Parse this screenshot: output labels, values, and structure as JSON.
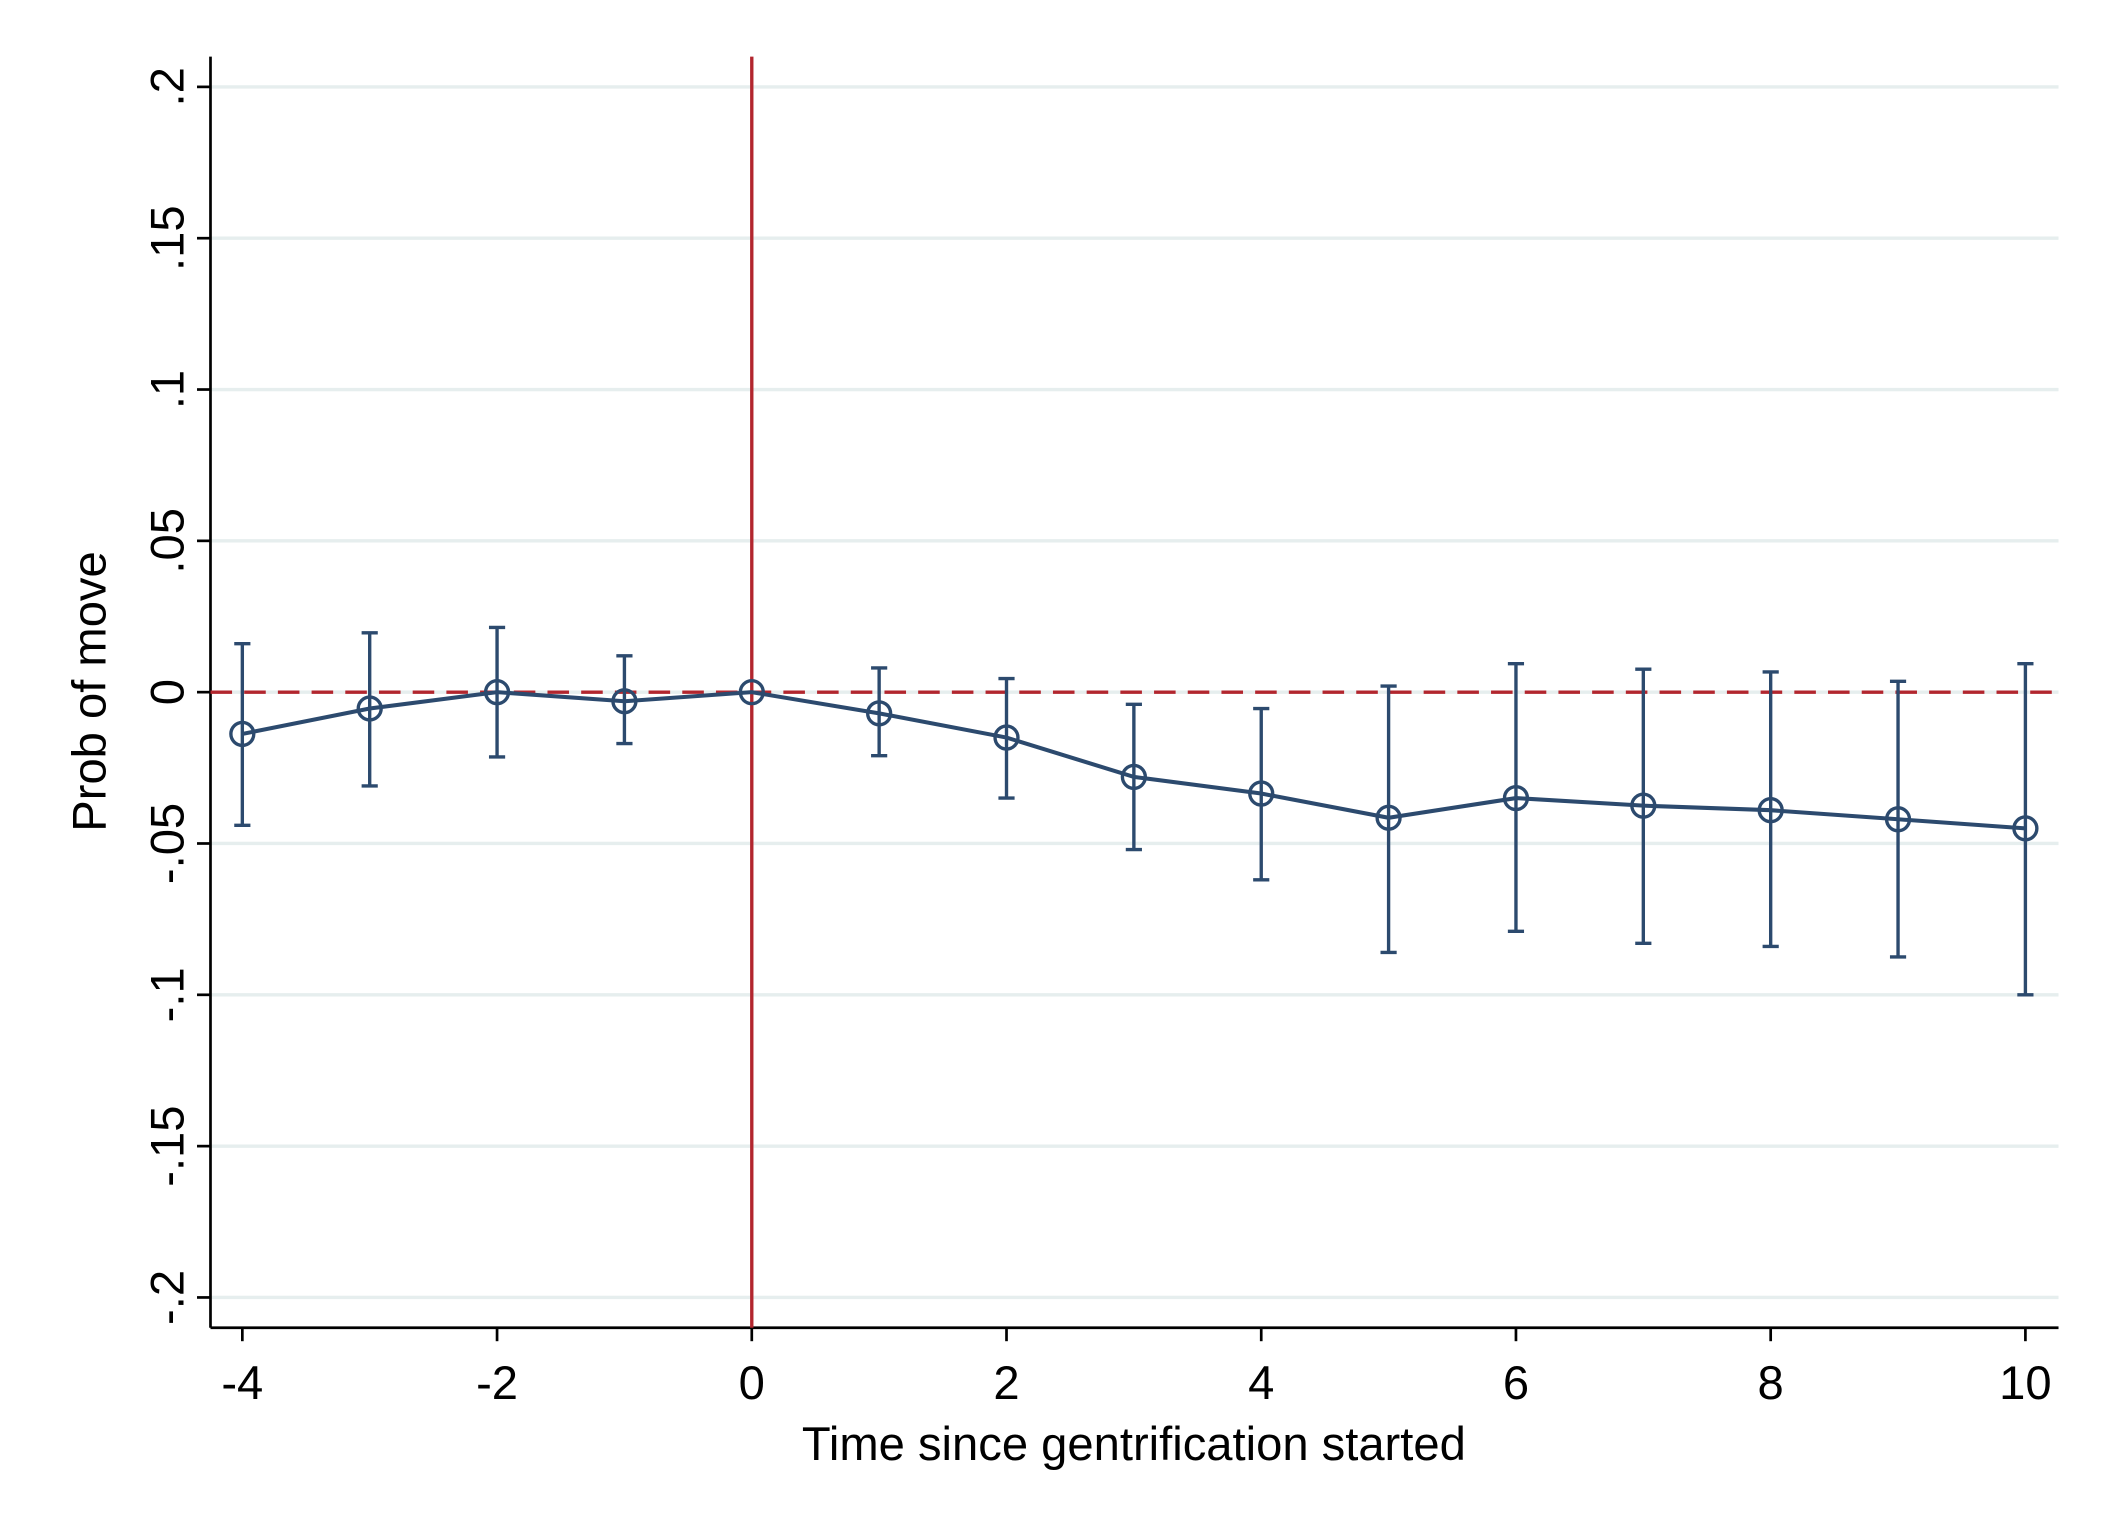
{
  "chart_data": {
    "type": "errorbar-line",
    "x_label": "Time since gentrification started",
    "y_label": "Prob of move",
    "x": [
      -4,
      -3,
      -2,
      -1,
      0,
      1,
      2,
      3,
      4,
      5,
      6,
      7,
      8,
      9,
      10
    ],
    "series": [
      {
        "color": "#2c4a6e",
        "values": [
          -0.0138,
          -0.0054,
          0.0,
          -0.003,
          0.0,
          -0.007,
          -0.015,
          -0.028,
          -0.0335,
          -0.0415,
          -0.035,
          -0.0375,
          -0.039,
          -0.042,
          -0.045
        ],
        "ci_low": [
          -0.044,
          -0.031,
          -0.0214,
          -0.017,
          null,
          -0.021,
          -0.035,
          -0.052,
          -0.062,
          -0.086,
          -0.079,
          -0.083,
          -0.084,
          -0.0875,
          -0.1
        ],
        "ci_high": [
          0.016,
          0.0196,
          0.0214,
          0.012,
          null,
          0.008,
          0.0045,
          -0.004,
          -0.0054,
          0.002,
          0.0094,
          0.0076,
          0.0067,
          0.0036,
          0.0094
        ]
      }
    ],
    "xlim": [
      -4.25,
      10.26
    ],
    "ylim": [
      -0.21,
      0.21
    ],
    "xticks": [
      -4,
      -2,
      0,
      2,
      4,
      6,
      8,
      10
    ],
    "yticks": [
      {
        "value": -0.2,
        "label": "-.2"
      },
      {
        "value": -0.15,
        "label": "-.15"
      },
      {
        "value": -0.1,
        "label": "-.1"
      },
      {
        "value": -0.05,
        "label": "-.05"
      },
      0,
      {
        "value": 0.05,
        "label": ".05"
      },
      {
        "value": 0.1,
        "label": ".1"
      },
      {
        "value": 0.15,
        "label": ".15"
      },
      {
        "value": 0.2,
        "label": ".2"
      }
    ],
    "grid": true,
    "vline": 0,
    "vline_color": "#b2262e",
    "hline": 0,
    "hline_color": "#b2262e"
  }
}
